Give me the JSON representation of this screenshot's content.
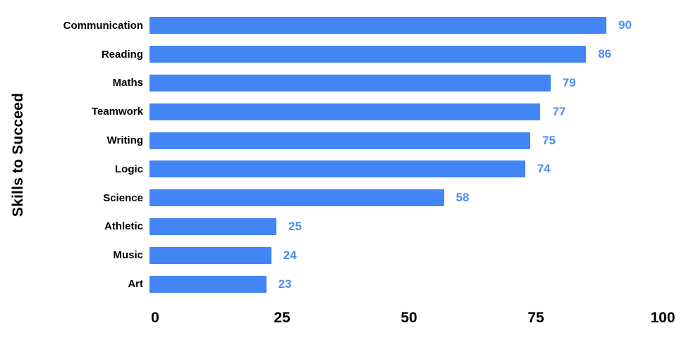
{
  "chart_data": {
    "type": "bar",
    "orientation": "horizontal",
    "title": "",
    "xlabel": "",
    "ylabel": "Skills to Succeed",
    "categories": [
      "Communication",
      "Reading",
      "Maths",
      "Teamwork",
      "Writing",
      "Logic",
      "Science",
      "Athletic",
      "Music",
      "Art"
    ],
    "values": [
      90,
      86,
      79,
      77,
      75,
      74,
      58,
      25,
      24,
      23
    ],
    "xlim": [
      0,
      100
    ],
    "x_ticks": [
      0,
      25,
      50,
      75,
      100
    ],
    "grid": false,
    "legend": false,
    "data_labels": true,
    "colors": {
      "bar": "#4285f4",
      "value_label": "#4d8cf5",
      "category_label": "#000000",
      "tick_label": "#000000",
      "axis_title": "#000000",
      "background": "#ffffff"
    }
  }
}
